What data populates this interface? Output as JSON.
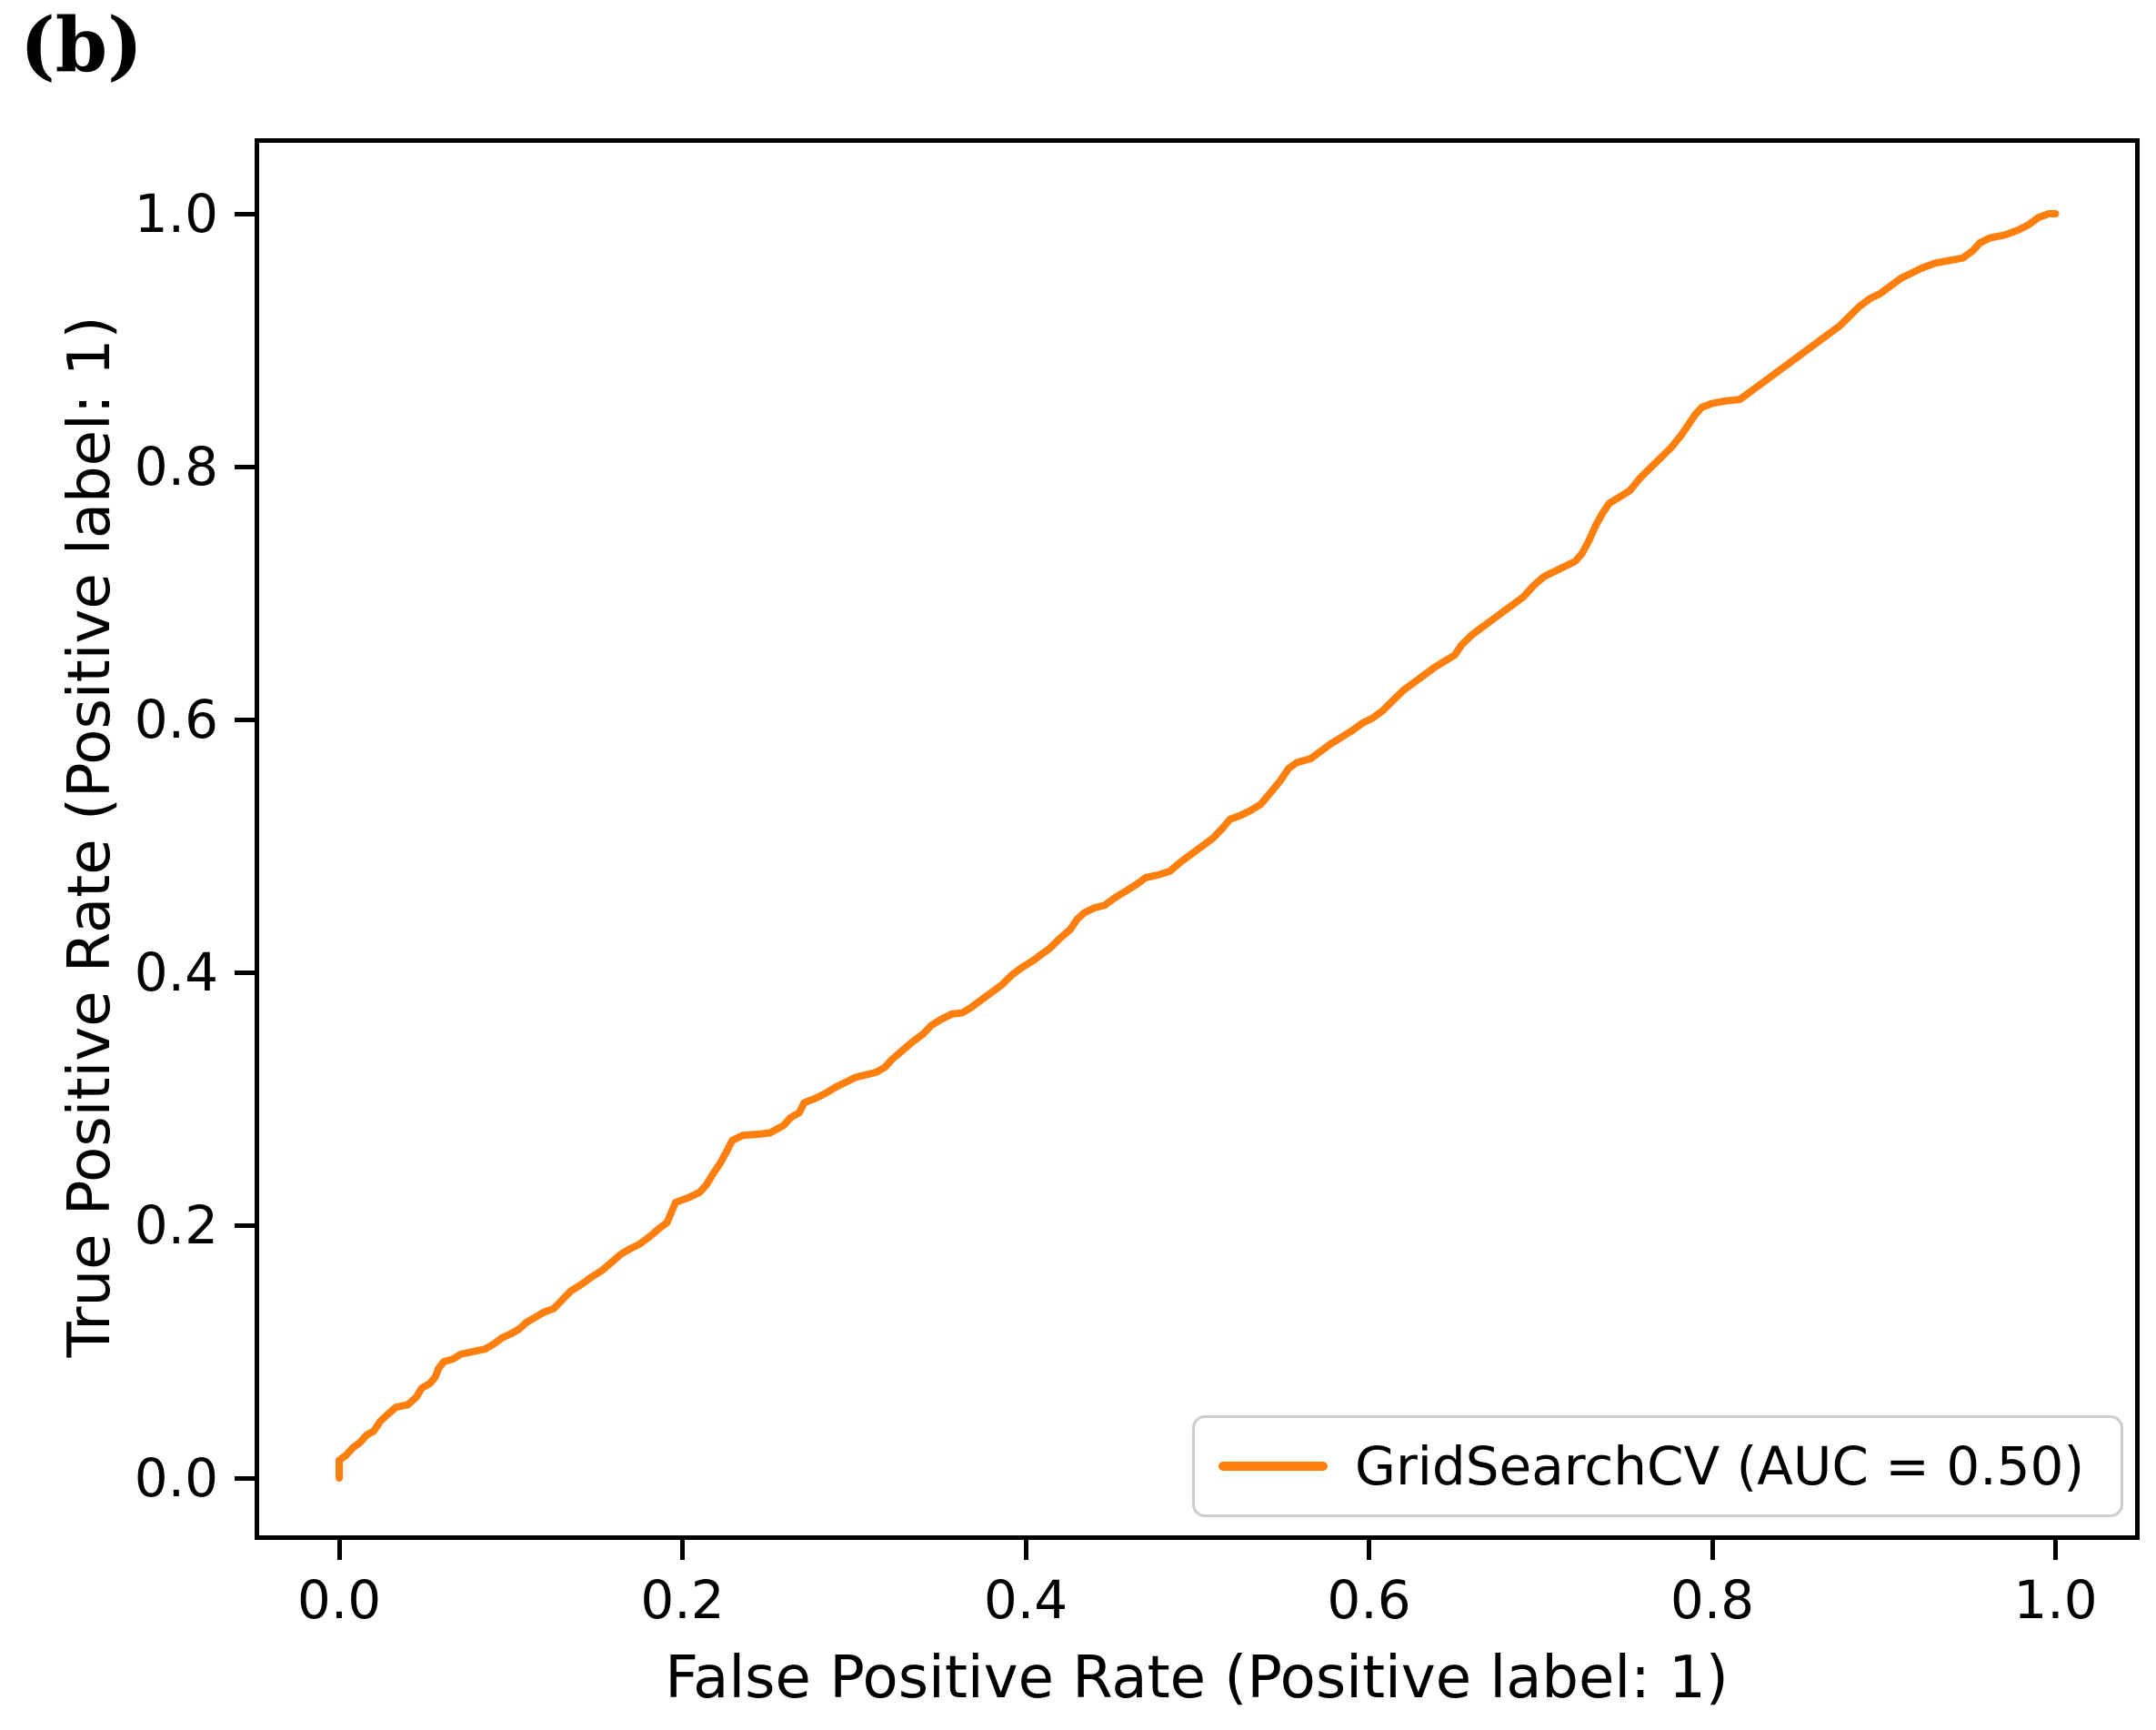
{
  "figure": {
    "panel_label": "(b)"
  },
  "chart_data": {
    "type": "line",
    "title": "",
    "xlabel": "False Positive Rate (Positive label: 1)",
    "ylabel": "True Positive Rate (Positive label: 1)",
    "x_tick_labels": [
      "0.0",
      "0.2",
      "0.4",
      "0.6",
      "0.8",
      "1.0"
    ],
    "y_tick_labels": [
      "0.0",
      "0.2",
      "0.4",
      "0.6",
      "0.8",
      "1.0"
    ],
    "x_tick_values": [
      0.0,
      0.2,
      0.4,
      0.6,
      0.8,
      1.0
    ],
    "y_tick_values": [
      0.0,
      0.2,
      0.4,
      0.6,
      0.8,
      1.0
    ],
    "xlim": [
      -0.051,
      1.04
    ],
    "ylim": [
      -0.045,
      1.06
    ],
    "grid": false,
    "legend": {
      "position": "lower right",
      "entries": [
        {
          "label": "GridSearchCV (AUC = 0.50)",
          "color": "#ff7f0e"
        }
      ]
    },
    "series": [
      {
        "name": "GridSearchCV",
        "auc": 0.5,
        "color": "#ff7f0e",
        "line_width": 8,
        "points": [
          [
            0.0,
            0.0
          ],
          [
            0.0,
            0.014
          ],
          [
            0.004,
            0.018
          ],
          [
            0.008,
            0.024
          ],
          [
            0.012,
            0.028
          ],
          [
            0.016,
            0.034
          ],
          [
            0.02,
            0.037
          ],
          [
            0.024,
            0.045
          ],
          [
            0.028,
            0.05
          ],
          [
            0.033,
            0.056
          ],
          [
            0.04,
            0.058
          ],
          [
            0.045,
            0.064
          ],
          [
            0.048,
            0.071
          ],
          [
            0.053,
            0.075
          ],
          [
            0.056,
            0.08
          ],
          [
            0.058,
            0.087
          ],
          [
            0.061,
            0.092
          ],
          [
            0.066,
            0.094
          ],
          [
            0.071,
            0.098
          ],
          [
            0.078,
            0.1
          ],
          [
            0.085,
            0.102
          ],
          [
            0.09,
            0.106
          ],
          [
            0.095,
            0.111
          ],
          [
            0.1,
            0.114
          ],
          [
            0.105,
            0.118
          ],
          [
            0.109,
            0.123
          ],
          [
            0.114,
            0.127
          ],
          [
            0.119,
            0.131
          ],
          [
            0.125,
            0.134
          ],
          [
            0.13,
            0.141
          ],
          [
            0.135,
            0.148
          ],
          [
            0.141,
            0.153
          ],
          [
            0.147,
            0.159
          ],
          [
            0.153,
            0.164
          ],
          [
            0.159,
            0.171
          ],
          [
            0.164,
            0.177
          ],
          [
            0.169,
            0.181
          ],
          [
            0.175,
            0.185
          ],
          [
            0.181,
            0.191
          ],
          [
            0.186,
            0.197
          ],
          [
            0.191,
            0.202
          ],
          [
            0.196,
            0.218
          ],
          [
            0.204,
            0.222
          ],
          [
            0.21,
            0.226
          ],
          [
            0.214,
            0.232
          ],
          [
            0.218,
            0.241
          ],
          [
            0.222,
            0.249
          ],
          [
            0.226,
            0.259
          ],
          [
            0.229,
            0.267
          ],
          [
            0.235,
            0.271
          ],
          [
            0.245,
            0.272
          ],
          [
            0.251,
            0.273
          ],
          [
            0.255,
            0.276
          ],
          [
            0.259,
            0.279
          ],
          [
            0.263,
            0.285
          ],
          [
            0.268,
            0.289
          ],
          [
            0.271,
            0.297
          ],
          [
            0.277,
            0.3
          ],
          [
            0.283,
            0.304
          ],
          [
            0.289,
            0.309
          ],
          [
            0.295,
            0.313
          ],
          [
            0.301,
            0.317
          ],
          [
            0.307,
            0.319
          ],
          [
            0.313,
            0.321
          ],
          [
            0.318,
            0.325
          ],
          [
            0.322,
            0.331
          ],
          [
            0.328,
            0.338
          ],
          [
            0.334,
            0.345
          ],
          [
            0.34,
            0.351
          ],
          [
            0.345,
            0.358
          ],
          [
            0.351,
            0.363
          ],
          [
            0.357,
            0.367
          ],
          [
            0.363,
            0.368
          ],
          [
            0.368,
            0.372
          ],
          [
            0.373,
            0.377
          ],
          [
            0.38,
            0.384
          ],
          [
            0.386,
            0.39
          ],
          [
            0.392,
            0.398
          ],
          [
            0.398,
            0.404
          ],
          [
            0.404,
            0.409
          ],
          [
            0.409,
            0.414
          ],
          [
            0.414,
            0.419
          ],
          [
            0.42,
            0.427
          ],
          [
            0.426,
            0.434
          ],
          [
            0.43,
            0.442
          ],
          [
            0.434,
            0.447
          ],
          [
            0.44,
            0.451
          ],
          [
            0.446,
            0.453
          ],
          [
            0.452,
            0.459
          ],
          [
            0.458,
            0.464
          ],
          [
            0.464,
            0.469
          ],
          [
            0.47,
            0.475
          ],
          [
            0.477,
            0.477
          ],
          [
            0.484,
            0.48
          ],
          [
            0.49,
            0.487
          ],
          [
            0.497,
            0.494
          ],
          [
            0.503,
            0.5
          ],
          [
            0.509,
            0.506
          ],
          [
            0.514,
            0.513
          ],
          [
            0.519,
            0.521
          ],
          [
            0.525,
            0.524
          ],
          [
            0.531,
            0.528
          ],
          [
            0.537,
            0.533
          ],
          [
            0.542,
            0.541
          ],
          [
            0.548,
            0.551
          ],
          [
            0.553,
            0.561
          ],
          [
            0.558,
            0.566
          ],
          [
            0.566,
            0.569
          ],
          [
            0.572,
            0.575
          ],
          [
            0.578,
            0.581
          ],
          [
            0.584,
            0.586
          ],
          [
            0.59,
            0.591
          ],
          [
            0.596,
            0.597
          ],
          [
            0.602,
            0.601
          ],
          [
            0.608,
            0.607
          ],
          [
            0.614,
            0.615
          ],
          [
            0.62,
            0.623
          ],
          [
            0.626,
            0.629
          ],
          [
            0.632,
            0.635
          ],
          [
            0.638,
            0.641
          ],
          [
            0.644,
            0.646
          ],
          [
            0.65,
            0.651
          ],
          [
            0.654,
            0.659
          ],
          [
            0.66,
            0.667
          ],
          [
            0.666,
            0.673
          ],
          [
            0.672,
            0.679
          ],
          [
            0.678,
            0.685
          ],
          [
            0.684,
            0.691
          ],
          [
            0.69,
            0.697
          ],
          [
            0.696,
            0.706
          ],
          [
            0.702,
            0.713
          ],
          [
            0.708,
            0.717
          ],
          [
            0.714,
            0.721
          ],
          [
            0.72,
            0.725
          ],
          [
            0.724,
            0.731
          ],
          [
            0.728,
            0.741
          ],
          [
            0.732,
            0.753
          ],
          [
            0.736,
            0.763
          ],
          [
            0.74,
            0.771
          ],
          [
            0.746,
            0.776
          ],
          [
            0.752,
            0.781
          ],
          [
            0.758,
            0.791
          ],
          [
            0.764,
            0.799
          ],
          [
            0.77,
            0.807
          ],
          [
            0.776,
            0.815
          ],
          [
            0.782,
            0.825
          ],
          [
            0.786,
            0.833
          ],
          [
            0.79,
            0.841
          ],
          [
            0.794,
            0.847
          ],
          [
            0.8,
            0.85
          ],
          [
            0.808,
            0.852
          ],
          [
            0.816,
            0.853
          ],
          [
            0.82,
            0.857
          ],
          [
            0.826,
            0.863
          ],
          [
            0.832,
            0.869
          ],
          [
            0.838,
            0.875
          ],
          [
            0.844,
            0.881
          ],
          [
            0.85,
            0.887
          ],
          [
            0.856,
            0.893
          ],
          [
            0.862,
            0.899
          ],
          [
            0.868,
            0.905
          ],
          [
            0.874,
            0.911
          ],
          [
            0.88,
            0.919
          ],
          [
            0.886,
            0.927
          ],
          [
            0.892,
            0.933
          ],
          [
            0.898,
            0.937
          ],
          [
            0.904,
            0.943
          ],
          [
            0.91,
            0.949
          ],
          [
            0.916,
            0.953
          ],
          [
            0.922,
            0.957
          ],
          [
            0.93,
            0.961
          ],
          [
            0.938,
            0.963
          ],
          [
            0.946,
            0.965
          ],
          [
            0.952,
            0.971
          ],
          [
            0.956,
            0.977
          ],
          [
            0.962,
            0.981
          ],
          [
            0.97,
            0.983
          ],
          [
            0.978,
            0.987
          ],
          [
            0.984,
            0.991
          ],
          [
            0.99,
            0.997
          ],
          [
            0.996,
            1.0
          ],
          [
            1.0,
            1.0
          ]
        ]
      }
    ]
  }
}
